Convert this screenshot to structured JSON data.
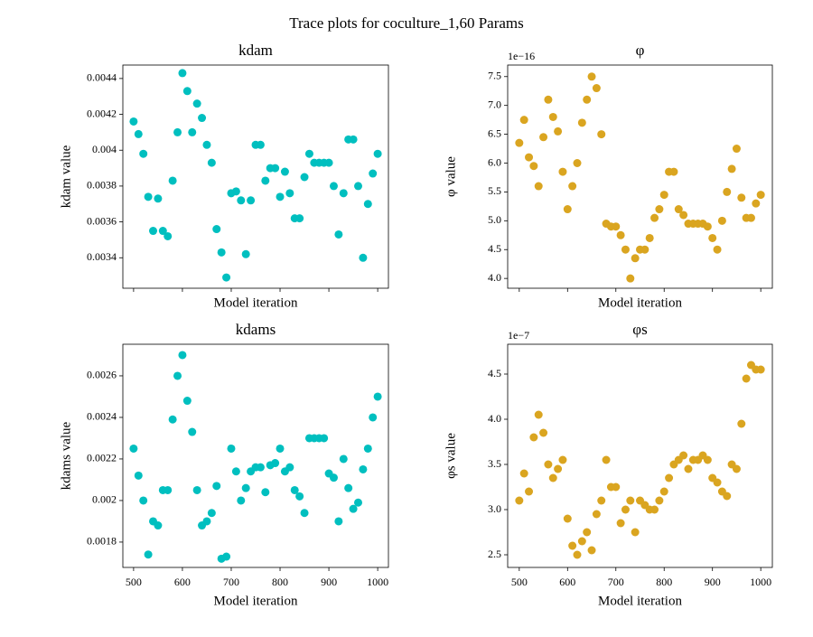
{
  "title": "Trace plots for coculture_1,60 Params",
  "chart_data": [
    {
      "type": "scatter",
      "title": "kdam",
      "x_label": "Model iteration",
      "y_label": "kdam value",
      "color": "#00bfbf",
      "xtick_labels": false,
      "x": [
        500,
        510,
        520,
        530,
        540,
        550,
        560,
        570,
        580,
        590,
        600,
        610,
        620,
        630,
        640,
        650,
        660,
        670,
        680,
        690,
        700,
        710,
        720,
        730,
        740,
        750,
        760,
        770,
        780,
        790,
        800,
        810,
        820,
        830,
        840,
        850,
        860,
        870,
        880,
        890,
        900,
        910,
        920,
        930,
        940,
        950,
        960,
        970,
        980,
        990,
        1000
      ],
      "values": [
        0.00416,
        0.00409,
        0.00398,
        0.00374,
        0.00355,
        0.00373,
        0.00355,
        0.00352,
        0.00383,
        0.0041,
        0.00443,
        0.00433,
        0.0041,
        0.00426,
        0.00418,
        0.00403,
        0.00393,
        0.00356,
        0.00343,
        0.00329,
        0.00376,
        0.00377,
        0.00372,
        0.00342,
        0.00372,
        0.00403,
        0.00403,
        0.00383,
        0.0039,
        0.0039,
        0.00374,
        0.00388,
        0.00376,
        0.00362,
        0.00362,
        0.00385,
        0.00398,
        0.00393,
        0.00393,
        0.00393,
        0.00393,
        0.0038,
        0.00353,
        0.00376,
        0.00406,
        0.00406,
        0.0038,
        0.0034,
        0.0037,
        0.00387,
        0.00398
      ],
      "xlim": [
        478,
        1022
      ],
      "ylim": [
        0.00323,
        0.004475
      ],
      "xticks": [
        500,
        600,
        700,
        800,
        900,
        1000
      ],
      "yticks": [
        0.0034,
        0.0036,
        0.0038,
        0.004,
        0.0042,
        0.0044
      ]
    },
    {
      "type": "scatter",
      "title": "φ",
      "x_label": "Model iteration",
      "y_label": "φ value",
      "color": "#daa520",
      "xtick_labels": false,
      "offset_label": "1e−16",
      "x": [
        500,
        510,
        520,
        530,
        540,
        550,
        560,
        570,
        580,
        590,
        600,
        610,
        620,
        630,
        640,
        650,
        660,
        670,
        680,
        690,
        700,
        710,
        720,
        730,
        740,
        750,
        760,
        770,
        780,
        790,
        800,
        810,
        820,
        830,
        840,
        850,
        860,
        870,
        880,
        890,
        900,
        910,
        920,
        930,
        940,
        950,
        960,
        970,
        980,
        990,
        1000
      ],
      "values": [
        6.35,
        6.75,
        6.1,
        5.95,
        5.6,
        6.45,
        7.1,
        6.8,
        6.55,
        5.85,
        5.2,
        5.6,
        6.0,
        6.7,
        7.1,
        7.5,
        7.3,
        6.5,
        4.95,
        4.9,
        4.9,
        4.75,
        4.5,
        4.0,
        4.35,
        4.5,
        4.5,
        4.7,
        5.05,
        5.2,
        5.45,
        5.85,
        5.85,
        5.2,
        5.1,
        4.95,
        4.95,
        4.95,
        4.95,
        4.9,
        4.7,
        4.5,
        5.0,
        5.5,
        5.9,
        6.25,
        5.4,
        5.05,
        5.05,
        5.3,
        5.45
      ],
      "xlim": [
        476,
        1024
      ],
      "ylim": [
        3.83,
        7.7
      ],
      "xticks": [
        500,
        600,
        700,
        800,
        900,
        1000
      ],
      "yticks": [
        {
          "value": 4,
          "label": "4.0"
        },
        4.5,
        {
          "value": 5,
          "label": "5.0"
        },
        5.5,
        {
          "value": 6,
          "label": "6.0"
        },
        6.5,
        {
          "value": 7,
          "label": "7.0"
        },
        7.5
      ]
    },
    {
      "type": "scatter",
      "title": "kdams",
      "x_label": "Model iteration",
      "y_label": "kdams value",
      "color": "#00bfbf",
      "xtick_labels": true,
      "x": [
        500,
        510,
        520,
        530,
        540,
        550,
        560,
        570,
        580,
        590,
        600,
        610,
        620,
        630,
        640,
        650,
        660,
        670,
        680,
        690,
        700,
        710,
        720,
        730,
        740,
        750,
        760,
        770,
        780,
        790,
        800,
        810,
        820,
        830,
        840,
        850,
        860,
        870,
        880,
        890,
        900,
        910,
        920,
        930,
        940,
        950,
        960,
        970,
        980,
        990,
        1000
      ],
      "values": [
        0.00225,
        0.00212,
        0.002,
        0.00174,
        0.0019,
        0.00188,
        0.00205,
        0.00205,
        0.00239,
        0.0026,
        0.0027,
        0.00248,
        0.00233,
        0.00205,
        0.00188,
        0.0019,
        0.00194,
        0.00207,
        0.00172,
        0.00173,
        0.00225,
        0.00214,
        0.002,
        0.00206,
        0.00214,
        0.00216,
        0.00216,
        0.00204,
        0.00217,
        0.00218,
        0.00225,
        0.00214,
        0.00216,
        0.00205,
        0.00202,
        0.00194,
        0.0023,
        0.0023,
        0.0023,
        0.0023,
        0.00213,
        0.00211,
        0.0019,
        0.0022,
        0.00206,
        0.00196,
        0.00199,
        0.00215,
        0.00225,
        0.0024,
        0.0025
      ],
      "xlim": [
        478,
        1022
      ],
      "ylim": [
        0.001678,
        0.002752
      ],
      "xticks": [
        500,
        600,
        700,
        800,
        900,
        1000
      ],
      "yticks": [
        0.0018,
        0.002,
        0.0022,
        0.0024,
        0.0026
      ]
    },
    {
      "type": "scatter",
      "title": "φs",
      "x_label": "Model iteration",
      "y_label": "φs value",
      "color": "#daa520",
      "xtick_labels": true,
      "offset_label": "1e−7",
      "x": [
        500,
        510,
        520,
        530,
        540,
        550,
        560,
        570,
        580,
        590,
        600,
        610,
        620,
        630,
        640,
        650,
        660,
        670,
        680,
        690,
        700,
        710,
        720,
        730,
        740,
        750,
        760,
        770,
        780,
        790,
        800,
        810,
        820,
        830,
        840,
        850,
        860,
        870,
        880,
        890,
        900,
        910,
        920,
        930,
        940,
        950,
        960,
        970,
        980,
        990,
        1000
      ],
      "values": [
        3.1,
        3.4,
        3.2,
        3.8,
        4.05,
        3.85,
        3.5,
        3.35,
        3.45,
        3.55,
        2.9,
        2.6,
        2.5,
        2.65,
        2.75,
        2.55,
        2.95,
        3.1,
        3.55,
        3.25,
        3.25,
        2.85,
        3.0,
        3.1,
        2.75,
        3.1,
        3.05,
        3.0,
        3.0,
        3.1,
        3.2,
        3.35,
        3.5,
        3.55,
        3.6,
        3.45,
        3.55,
        3.55,
        3.6,
        3.55,
        3.35,
        3.3,
        3.2,
        3.15,
        3.5,
        3.45,
        3.95,
        4.45,
        4.6,
        4.55,
        4.55
      ],
      "xlim": [
        476,
        1024
      ],
      "ylim": [
        2.36,
        4.83
      ],
      "xticks": [
        500,
        600,
        700,
        800,
        900,
        1000
      ],
      "yticks": [
        2.5,
        {
          "value": 3,
          "label": "3.0"
        },
        3.5,
        {
          "value": 4,
          "label": "4.0"
        },
        4.5
      ]
    }
  ]
}
